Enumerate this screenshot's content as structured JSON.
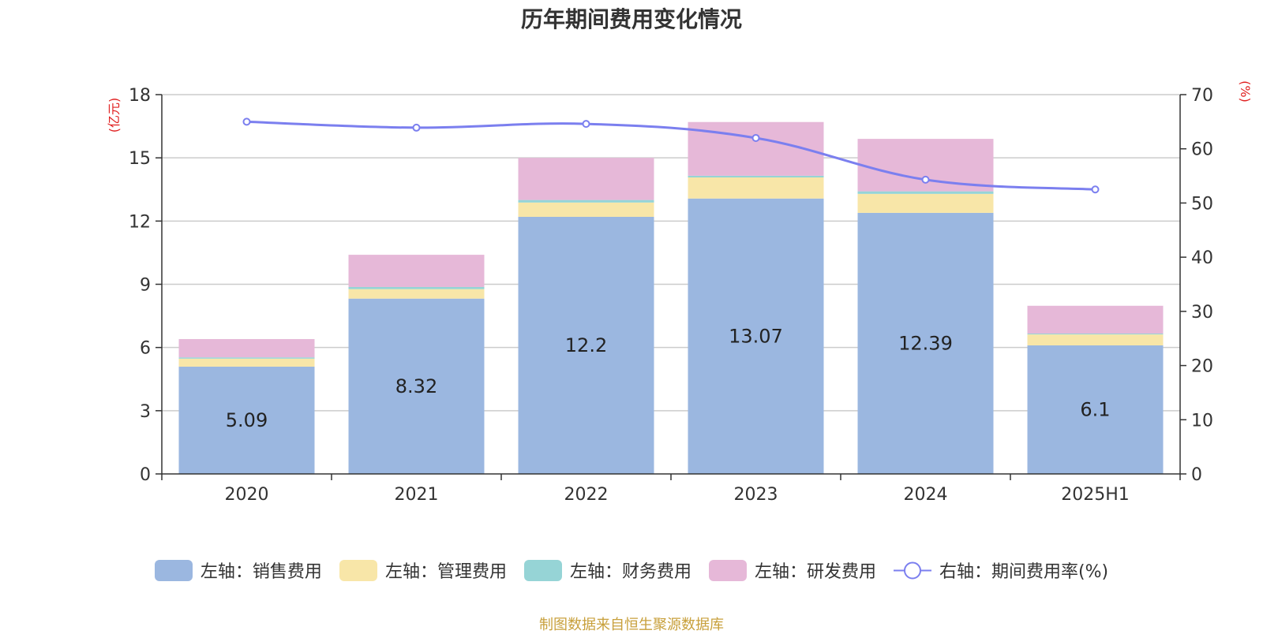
{
  "chart_data": {
    "type": "bar",
    "title": "历年期间费用变化情况",
    "categories": [
      "2020",
      "2021",
      "2022",
      "2023",
      "2024",
      "2025H1"
    ],
    "left_axis": {
      "label": "(亿元)",
      "min": 0,
      "max": 18,
      "ticks": [
        0,
        3,
        6,
        9,
        12,
        15,
        18
      ]
    },
    "right_axis": {
      "label": "(%)",
      "min": 0,
      "max": 70,
      "ticks": [
        0,
        10,
        20,
        30,
        40,
        50,
        60,
        70
      ]
    },
    "grid": true,
    "legend_position": "bottom",
    "series": [
      {
        "name": "左轴：销售费用",
        "type": "bar",
        "stack": "left",
        "color": "#9bb7e0",
        "values": [
          5.09,
          8.32,
          12.2,
          13.07,
          12.39,
          6.1
        ],
        "labels": [
          "5.09",
          "8.32",
          "12.2",
          "13.07",
          "12.39",
          "6.1"
        ]
      },
      {
        "name": "左轴：管理费用",
        "type": "bar",
        "stack": "left",
        "color": "#f8e6a8",
        "values": [
          0.38,
          0.45,
          0.68,
          1.0,
          0.9,
          0.52
        ]
      },
      {
        "name": "左轴：财务费用",
        "type": "bar",
        "stack": "left",
        "color": "#96d4d6",
        "values": [
          0.06,
          0.1,
          0.12,
          0.08,
          0.12,
          0.04
        ]
      },
      {
        "name": "左轴：研发费用",
        "type": "bar",
        "stack": "left",
        "color": "#e6b8d8",
        "values": [
          0.87,
          1.53,
          2.0,
          2.55,
          2.49,
          1.32
        ]
      },
      {
        "name": "右轴：期间费用率(%)",
        "type": "line",
        "axis": "right",
        "color": "#7b7fef",
        "values": [
          65.0,
          63.9,
          64.6,
          62.0,
          54.3,
          52.5
        ]
      }
    ]
  },
  "source": "制图数据来自恒生聚源数据库"
}
